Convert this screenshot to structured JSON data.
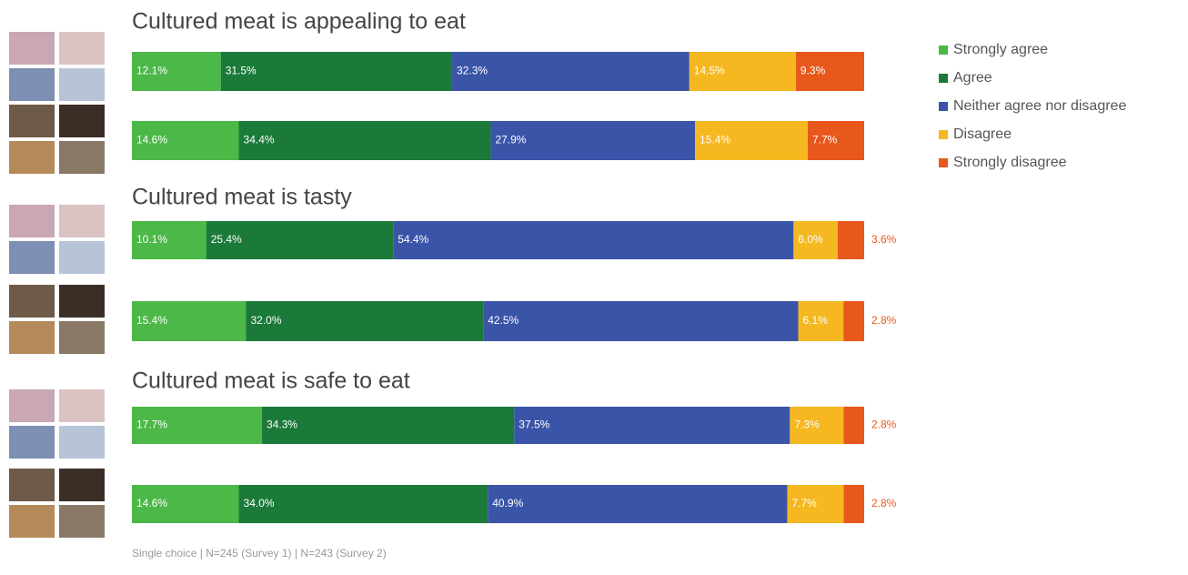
{
  "chart_data": [
    {
      "type": "bar",
      "title": "Cultured meat is appealing to eat",
      "categories": [
        null,
        null
      ],
      "series": [
        {
          "name": "Strongly agree",
          "color": "#4cb848",
          "values": [
            12.1,
            14.6
          ],
          "value_labels": [
            "12.1%",
            "14.6%"
          ]
        },
        {
          "name": "Agree",
          "color": "#1b7a3a",
          "values": [
            31.5,
            34.4
          ],
          "value_labels": [
            "31.5%",
            "34.4%"
          ]
        },
        {
          "name": "Neither agree nor disagree",
          "color": "#3a55a8",
          "values": [
            32.3,
            27.9
          ],
          "value_labels": [
            "32.3%",
            "27.9%"
          ]
        },
        {
          "name": "Disagree",
          "color": "#f5b820",
          "values": [
            14.5,
            15.4
          ],
          "value_labels": [
            "14.5%",
            "15.4%"
          ]
        },
        {
          "name": "Strongly disagree",
          "color": "#e8581c",
          "values": [
            9.3,
            7.7
          ],
          "value_labels": [
            "9.3%",
            "7.7%"
          ]
        }
      ]
    },
    {
      "type": "bar",
      "title": "Cultured meat is tasty",
      "categories": [
        null,
        null
      ],
      "series": [
        {
          "name": "Strongly agree",
          "color": "#4cb848",
          "values": [
            10.1,
            15.4
          ],
          "value_labels": [
            "10.1%",
            "15.4%"
          ]
        },
        {
          "name": "Agree",
          "color": "#1b7a3a",
          "values": [
            25.4,
            32.0
          ],
          "value_labels": [
            "25.4%",
            "32.0%"
          ]
        },
        {
          "name": "Neither agree nor disagree",
          "color": "#3a55a8",
          "values": [
            54.4,
            42.5
          ],
          "value_labels": [
            "54.4%",
            "42.5%"
          ]
        },
        {
          "name": "Disagree",
          "color": "#f5b820",
          "values": [
            6.0,
            6.1
          ],
          "value_labels": [
            "6.0%",
            "6.1%"
          ]
        },
        {
          "name": "Strongly disagree",
          "color": "#e8581c",
          "values": [
            3.6,
            2.8
          ],
          "value_labels": [
            "3.6%",
            "2.8%"
          ]
        }
      ]
    },
    {
      "type": "bar",
      "title": "Cultured meat is safe to eat",
      "categories": [
        null,
        null
      ],
      "series": [
        {
          "name": "Strongly agree",
          "color": "#4cb848",
          "values": [
            17.7,
            14.6
          ],
          "value_labels": [
            "17.7%",
            "14.6%"
          ]
        },
        {
          "name": "Agree",
          "color": "#1b7a3a",
          "values": [
            34.3,
            34.0
          ],
          "value_labels": [
            "34.3%",
            "34.0%"
          ]
        },
        {
          "name": "Neither agree nor disagree",
          "color": "#3a55a8",
          "values": [
            37.5,
            40.9
          ],
          "value_labels": [
            "37.5%",
            "40.9%"
          ]
        },
        {
          "name": "Disagree",
          "color": "#f5b820",
          "values": [
            7.3,
            7.7
          ],
          "value_labels": [
            "7.3%",
            "7.7%"
          ]
        },
        {
          "name": "Strongly disagree",
          "color": "#e8581c",
          "values": [
            2.8,
            2.8
          ],
          "value_labels": [
            "2.8%",
            "2.8%"
          ]
        }
      ]
    }
  ],
  "footnote": "Single choice | N=245 (Survey 1) | N=243 (Survey 2)"
}
